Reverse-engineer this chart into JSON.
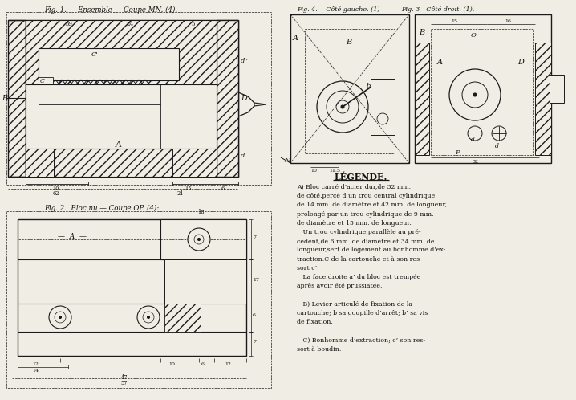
{
  "bg_color": "#f0ede4",
  "fig1_title": "Fig. 1. — Ensemble — Coupe MN. (4).",
  "fig2_title": "Fig. 2.  Bloc nu — Coupe OP. (4):",
  "fig3_title": "Fig. 3—Côté droit. (1).",
  "fig4_title": "Fig. 4. —Côté gauche. (1)",
  "legende_title": "LÉGENDE.",
  "legende_line1": "A) Bloc carré d’acier dur,de 32 mm.",
  "legende_line2": "de côté,percé d’un trou central cylindrique,",
  "legende_line3": "de 14 mm. de diamètre et 42 mm. de longueur,",
  "legende_line4": "prolongé par un trou cylindrique de 9 mm.",
  "legende_line5": "de diamètre et 15 mm. de longueur.",
  "legende_line6": "   Un trou cylindrique,parallèle au pré-",
  "legende_line7": "cédent,de 6 mm. de diamètre et 34 mm. de",
  "legende_line8": "longueur,sert de logement au bonhomme d’ex-",
  "legende_line9": "traction.C de la cartouche et à son res-",
  "legende_line10": "sort c’.",
  "legende_line11": "   La face droite a’ du bloc est trempée",
  "legende_line12": "après avoir été prussiatée.",
  "legende_line13": "",
  "legende_line14": "   B) Levier articulé de fixation de la",
  "legende_line15": "cartouche; b sa goupille d’arrêt; b’ sa vis",
  "legende_line16": "de fixation.",
  "legende_line17": "",
  "legende_line18": "   C) Bonhomme d’extraction; c’ son res-",
  "legende_line19": "sort à boudin.",
  "lc": "#1a1a1a"
}
